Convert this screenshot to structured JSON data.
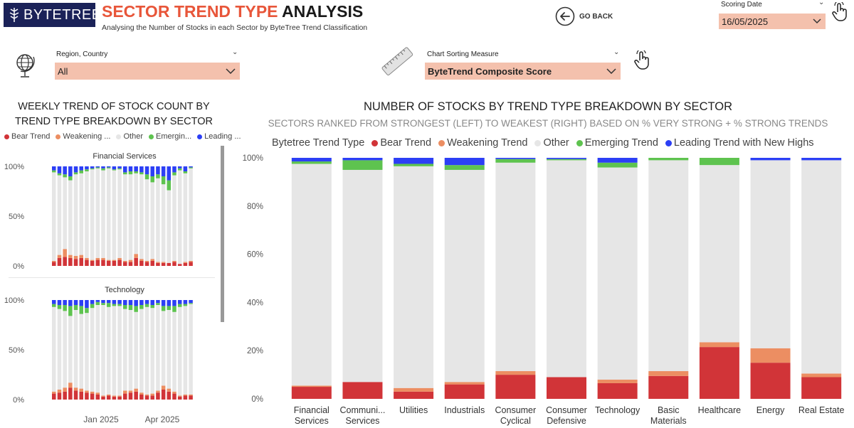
{
  "header": {
    "logo_text": "BYTETREE",
    "title_highlight": "SECTOR TREND TYPE",
    "title_rest": "ANALYSIS",
    "subtitle": "Analysing the Number of Stocks in each Sector by ByteTree Trend Classification",
    "go_back_label": "GO BACK"
  },
  "scoring_date": {
    "label": "Scoring Date",
    "value": "16/05/2025"
  },
  "region": {
    "label": "Region, Country",
    "value": "All"
  },
  "sorting": {
    "label": "Chart Sorting Measure",
    "value": "ByteTrend Composite Score"
  },
  "colors": {
    "bear": "#d13438",
    "weakening": "#ec8e62",
    "other": "#e6e6e6",
    "emerging": "#5ec34f",
    "leading": "#2c3ff5",
    "slicer_bg": "#f4c1ad",
    "brand_navy": "#1b2258",
    "title_accent": "#e8563a"
  },
  "icons": [
    "logo-tree-icon",
    "go-back-arrow-icon",
    "chevron-down-icon",
    "hand-pointer-icon",
    "globe-icon",
    "ruler-icon"
  ],
  "left_panel": {
    "title": "WEEKLY TREND OF STOCK COUNT BY TREND TYPE BREAKDOWN BY SECTOR",
    "legend": [
      "Bear Trend",
      "Weakening ...",
      "Other",
      "Emergin...",
      "Leading ..."
    ],
    "x_tick_labels": [
      "Jan 2025",
      "Apr 2025"
    ]
  },
  "chart_data": [
    {
      "type": "bar",
      "stacked": "percent",
      "title": "NUMBER OF STOCKS BY TREND TYPE BREAKDOWN BY SECTOR",
      "subtitle": "SECTORS RANKED FROM STRONGEST (LEFT) TO WEAKEST (RIGHT) BASED ON % VERY STRONG + % STRONG TRENDS",
      "legend_title": "Bytetree Trend Type",
      "legend_position": "top",
      "categories": [
        "Financial Services",
        "Communication Services",
        "Utilities",
        "Industrials",
        "Consumer Cyclical",
        "Consumer Defensive",
        "Technology",
        "Basic Materials",
        "Healthcare",
        "Energy",
        "Real Estate"
      ],
      "category_labels": [
        [
          "Financial",
          "Services"
        ],
        [
          "Communi...",
          "Services"
        ],
        [
          "Utilities"
        ],
        [
          "Industrials"
        ],
        [
          "Consumer",
          "Cyclical"
        ],
        [
          "Consumer",
          "Defensive"
        ],
        [
          "Technology"
        ],
        [
          "Basic",
          "Materials"
        ],
        [
          "Healthcare"
        ],
        [
          "Energy"
        ],
        [
          "Real Estate"
        ]
      ],
      "series": [
        {
          "name": "Bear Trend",
          "values": [
            5,
            7,
            3,
            6,
            10,
            9,
            6.5,
            9.5,
            21.5,
            15,
            9
          ]
        },
        {
          "name": "Weakening Trend",
          "values": [
            0.5,
            0,
            1.5,
            1,
            1.5,
            0,
            1.5,
            2,
            2,
            6,
            1.5
          ]
        },
        {
          "name": "Other",
          "values": [
            92,
            88,
            92,
            88,
            86.5,
            90,
            88,
            87.5,
            73.5,
            78,
            88.5
          ]
        },
        {
          "name": "Emerging Trend",
          "values": [
            1,
            4,
            1,
            2,
            1.5,
            0.5,
            2,
            1,
            3,
            0,
            0
          ]
        },
        {
          "name": "Leading Trend with New Highs",
          "values": [
            1.5,
            1,
            2.5,
            3,
            0.5,
            0.5,
            2,
            0,
            0,
            1,
            1
          ]
        }
      ],
      "y_ticks": [
        "0%",
        "20%",
        "40%",
        "60%",
        "80%",
        "100%"
      ],
      "ylim": [
        0,
        100
      ],
      "grid": false
    },
    {
      "type": "bar",
      "stacked": "percent",
      "title": "Financial Services",
      "weeks": 26,
      "y_ticks": [
        "0%",
        "50%",
        "100%"
      ],
      "ylim": [
        0,
        100
      ],
      "series": [
        {
          "name": "Bear Trend",
          "values": [
            4,
            8,
            9,
            8,
            7,
            8,
            6,
            5,
            6,
            6,
            5,
            5,
            6,
            4,
            4,
            8,
            5,
            4,
            5,
            3,
            3,
            3,
            4,
            2,
            3,
            4
          ]
        },
        {
          "name": "Weakening Trend",
          "values": [
            1,
            3,
            8,
            3,
            3,
            3,
            2,
            1,
            2,
            2,
            1,
            1,
            2,
            1,
            2,
            4,
            2,
            1,
            2,
            1,
            1,
            0,
            1,
            0,
            1,
            1
          ]
        },
        {
          "name": "Emerging Trend",
          "values": [
            2,
            2,
            3,
            4,
            2,
            3,
            2,
            1,
            1,
            2,
            1,
            1,
            1,
            2,
            3,
            2,
            2,
            5,
            6,
            4,
            8,
            10,
            3,
            2,
            2,
            1
          ]
        },
        {
          "name": "Leading Trend with New Highs",
          "values": [
            4,
            7,
            8,
            10,
            6,
            4,
            3,
            2,
            1,
            2,
            1,
            3,
            2,
            6,
            5,
            5,
            6,
            8,
            10,
            8,
            10,
            14,
            6,
            2,
            5,
            1
          ]
        }
      ]
    },
    {
      "type": "bar",
      "stacked": "percent",
      "title": "Technology",
      "weeks": 26,
      "y_ticks": [
        "0%",
        "50%",
        "100%"
      ],
      "ylim": [
        0,
        100
      ],
      "series": [
        {
          "name": "Bear Trend",
          "values": [
            6,
            7,
            8,
            12,
            9,
            8,
            7,
            6,
            5,
            3,
            4,
            3,
            3,
            6,
            7,
            8,
            5,
            4,
            4,
            7,
            10,
            8,
            6,
            3,
            4,
            4
          ]
        },
        {
          "name": "Weakening Trend",
          "values": [
            2,
            3,
            4,
            5,
            3,
            3,
            2,
            2,
            2,
            1,
            1,
            1,
            1,
            3,
            2,
            3,
            2,
            1,
            2,
            2,
            4,
            3,
            2,
            1,
            1,
            1
          ]
        },
        {
          "name": "Emerging Trend",
          "values": [
            3,
            4,
            6,
            10,
            5,
            8,
            5,
            4,
            3,
            2,
            4,
            2,
            2,
            4,
            5,
            6,
            4,
            3,
            3,
            2,
            5,
            4,
            6,
            3,
            2,
            1
          ]
        },
        {
          "name": "Leading Trend with New Highs",
          "values": [
            4,
            5,
            5,
            6,
            5,
            6,
            8,
            4,
            2,
            3,
            3,
            4,
            4,
            5,
            5,
            6,
            5,
            4,
            5,
            3,
            6,
            6,
            6,
            4,
            4,
            3
          ]
        }
      ]
    }
  ]
}
